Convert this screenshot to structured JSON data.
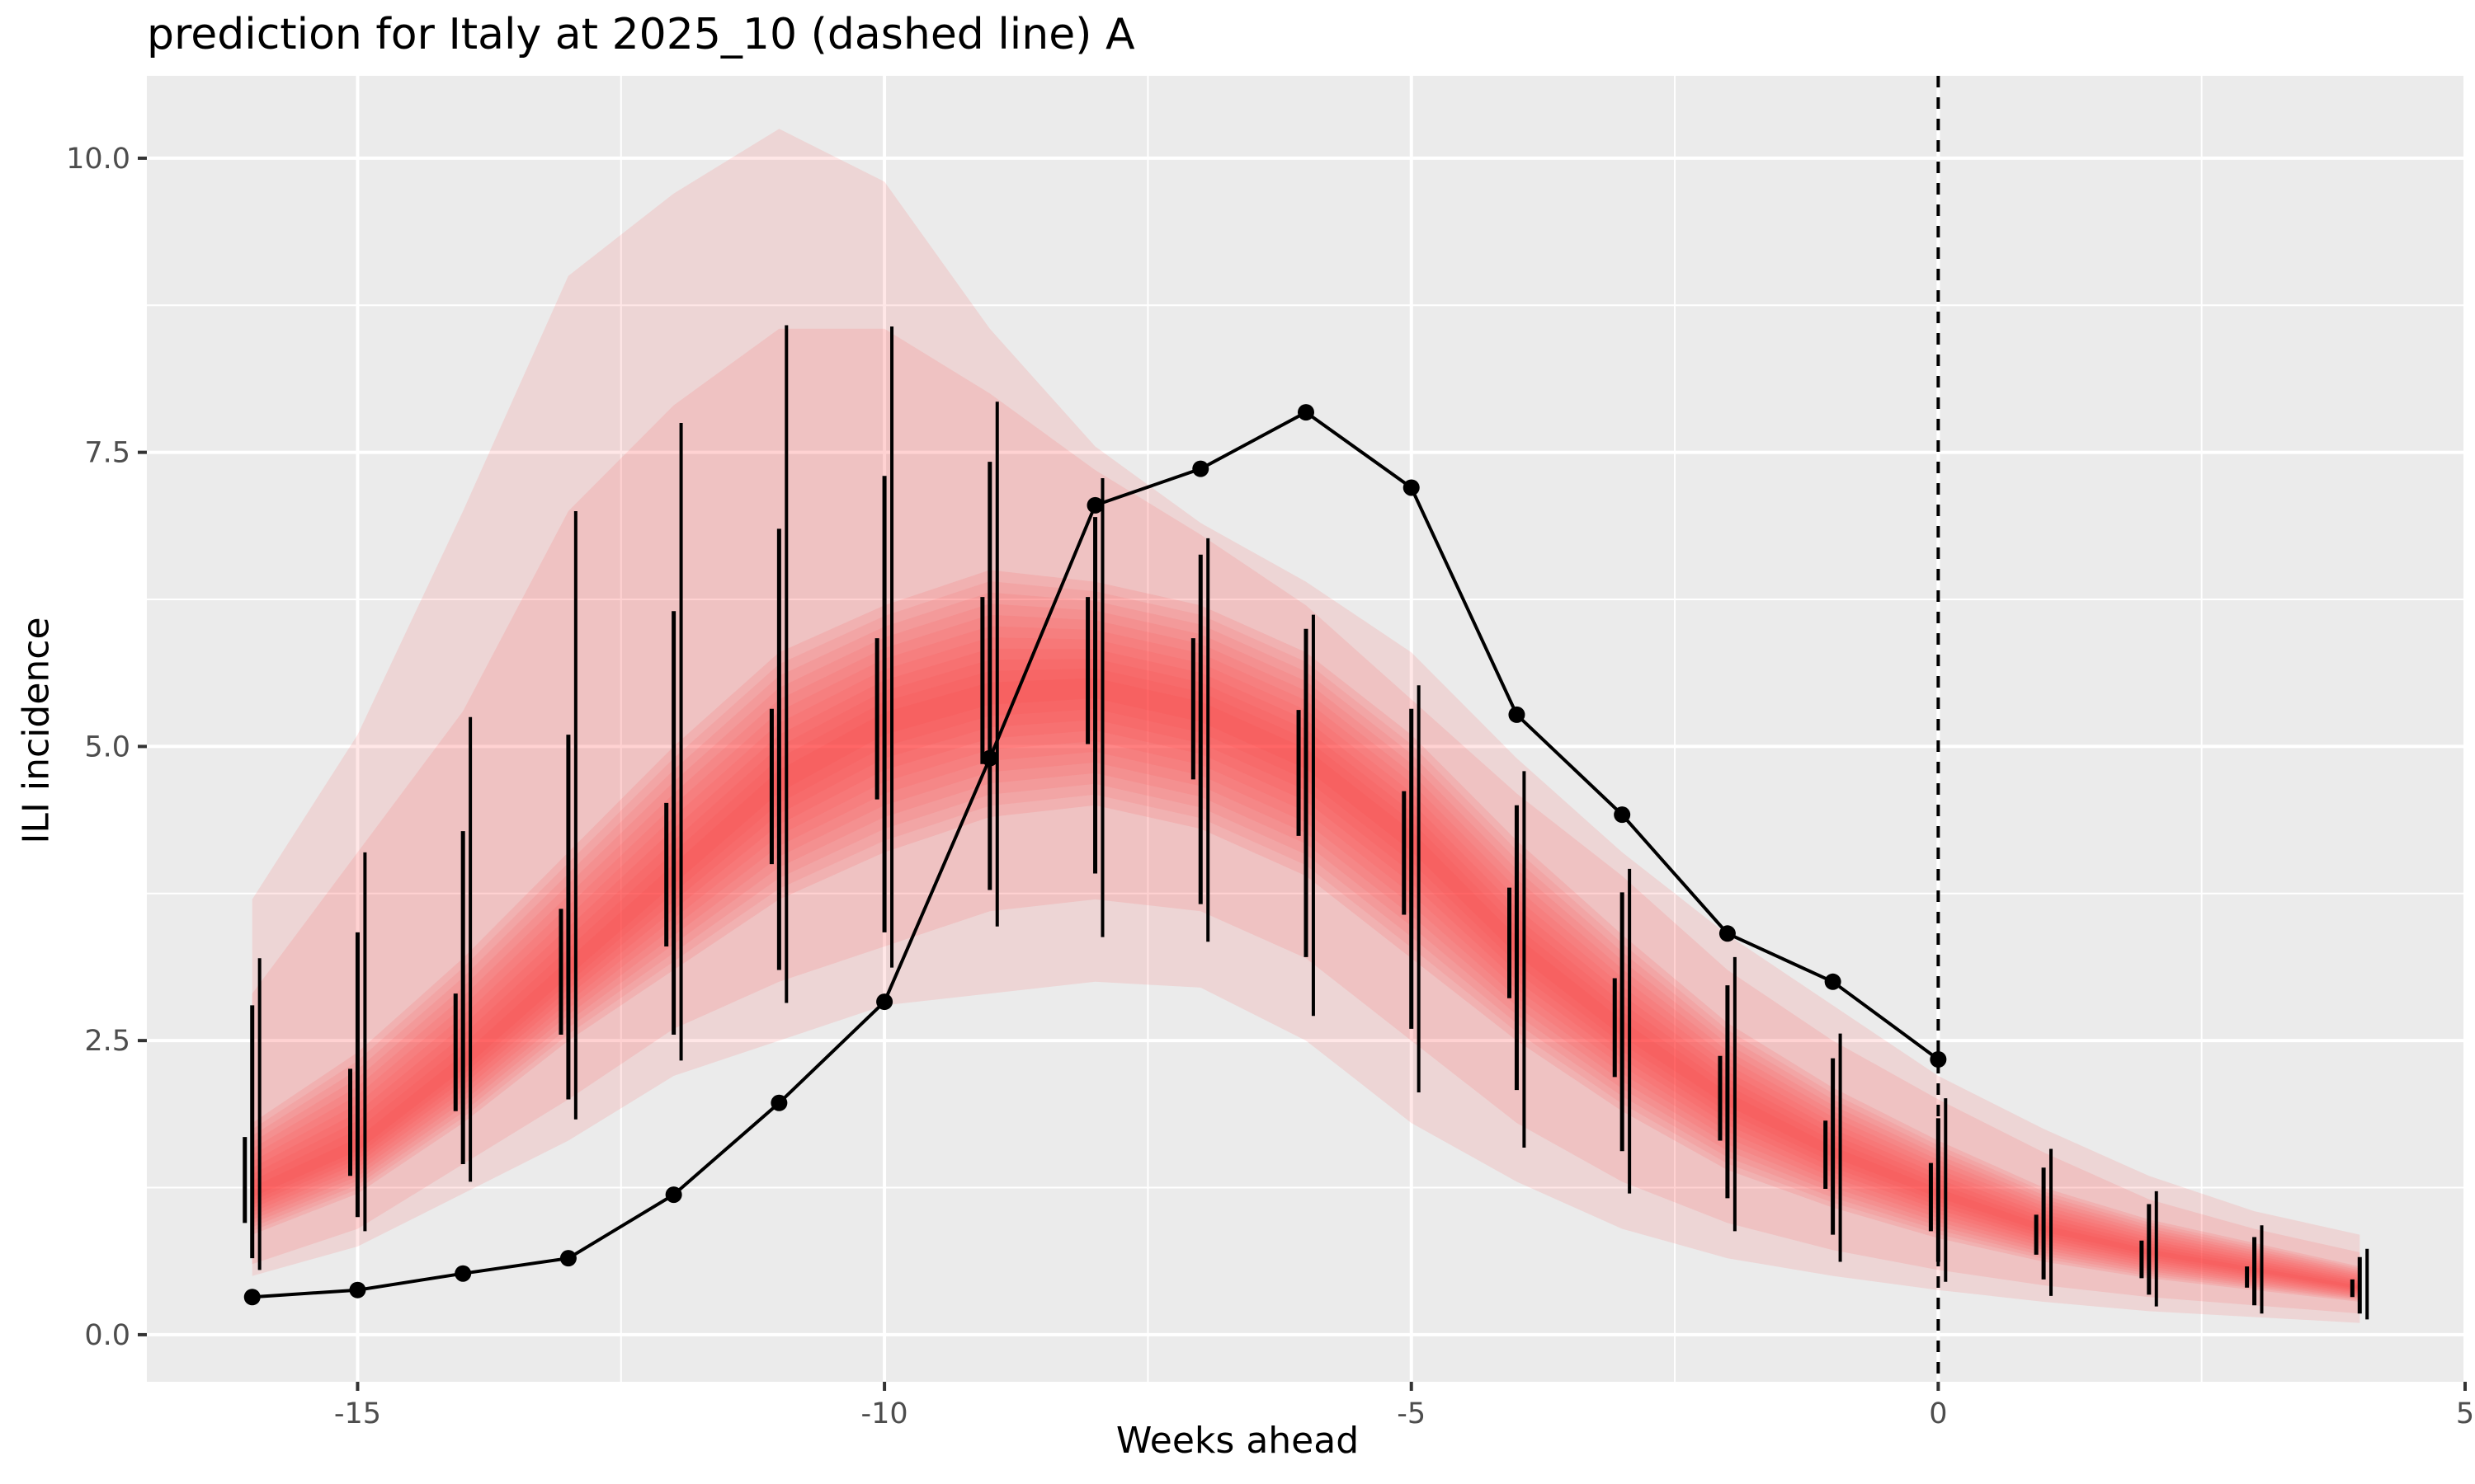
{
  "chart_data": {
    "type": "line",
    "title": "prediction for Italy at 2025_10 (dashed line) A",
    "xlabel": "Weeks ahead",
    "ylabel": "ILI incidence",
    "xlim": [
      -17,
      5
    ],
    "ylim": [
      -0.4,
      10.7
    ],
    "x_ticks": [
      -15,
      -10,
      -5,
      0,
      5
    ],
    "y_ticks": [
      0.0,
      2.5,
      5.0,
      7.5,
      10.0
    ],
    "x_tick_labels": [
      "-15",
      "-10",
      "-5",
      "0",
      "5"
    ],
    "y_tick_labels": [
      "0.0",
      "2.5",
      "5.0",
      "7.5",
      "10.0"
    ],
    "grid": true,
    "forecast_origin_x": 0,
    "observed": {
      "x": [
        -16,
        -15,
        -14,
        -13,
        -12,
        -11,
        -10,
        -9,
        -8,
        -7,
        -6,
        -5,
        -4,
        -3,
        -2,
        -1,
        0
      ],
      "y": [
        0.32,
        0.38,
        0.52,
        0.65,
        1.19,
        1.97,
        2.83,
        4.9,
        7.05,
        7.36,
        7.84,
        7.2,
        5.27,
        4.42,
        3.41,
        3.0,
        2.34
      ]
    },
    "forecast_ribbon": {
      "x": [
        -16,
        -15,
        -14,
        -13,
        -12,
        -11,
        -10,
        -9,
        -8,
        -7,
        -6,
        -5,
        -4,
        -3,
        -2,
        -1,
        0,
        1,
        2,
        3,
        4
      ],
      "median": [
        1.2,
        1.6,
        2.3,
        3.1,
        3.9,
        4.7,
        5.2,
        5.45,
        5.5,
        5.3,
        4.9,
        4.2,
        3.3,
        2.6,
        2.0,
        1.55,
        1.2,
        0.9,
        0.7,
        0.55,
        0.4
      ],
      "lower_95": [
        0.5,
        0.75,
        1.2,
        1.65,
        2.2,
        2.5,
        2.8,
        2.9,
        3.0,
        2.95,
        2.5,
        1.8,
        1.3,
        0.9,
        0.65,
        0.5,
        0.38,
        0.28,
        0.2,
        0.15,
        0.1
      ],
      "upper_95": [
        3.7,
        5.1,
        7.0,
        9.0,
        9.7,
        10.25,
        9.8,
        8.55,
        7.55,
        6.9,
        6.4,
        5.8,
        4.9,
        4.1,
        3.4,
        2.8,
        2.2,
        1.75,
        1.35,
        1.05,
        0.85
      ],
      "lower_80": [
        0.6,
        0.9,
        1.45,
        2.0,
        2.6,
        3.0,
        3.3,
        3.6,
        3.7,
        3.6,
        3.2,
        2.5,
        1.8,
        1.3,
        0.95,
        0.72,
        0.55,
        0.42,
        0.32,
        0.25,
        0.18
      ],
      "upper_80": [
        2.9,
        4.1,
        5.3,
        7.0,
        7.9,
        8.55,
        8.55,
        8.0,
        7.35,
        6.8,
        6.2,
        5.4,
        4.6,
        3.9,
        3.1,
        2.5,
        2.0,
        1.55,
        1.15,
        0.9,
        0.7
      ],
      "lower_50": [
        0.85,
        1.2,
        1.8,
        2.5,
        3.1,
        3.7,
        4.1,
        4.4,
        4.5,
        4.3,
        3.9,
        3.2,
        2.5,
        1.9,
        1.4,
        1.08,
        0.82,
        0.62,
        0.48,
        0.38,
        0.28
      ],
      "upper_50": [
        1.8,
        2.4,
        3.2,
        4.1,
        5.0,
        5.8,
        6.2,
        6.5,
        6.4,
        6.2,
        5.8,
        5.1,
        4.2,
        3.4,
        2.65,
        2.1,
        1.65,
        1.25,
        0.98,
        0.78,
        0.58
      ]
    },
    "interval_bars": [
      {
        "x": -16,
        "lo": [
          0.95,
          0.65,
          0.55
        ],
        "hi": [
          1.68,
          2.8,
          3.2
        ]
      },
      {
        "x": -15,
        "lo": [
          1.35,
          1.0,
          0.88
        ],
        "hi": [
          2.26,
          3.42,
          4.1
        ]
      },
      {
        "x": -14,
        "lo": [
          1.9,
          1.45,
          1.3
        ],
        "hi": [
          2.9,
          4.28,
          5.25
        ]
      },
      {
        "x": -13,
        "lo": [
          2.55,
          2.0,
          1.83
        ],
        "hi": [
          3.62,
          5.1,
          7.0
        ]
      },
      {
        "x": -12,
        "lo": [
          3.3,
          2.55,
          2.33
        ],
        "hi": [
          4.52,
          6.15,
          7.75
        ]
      },
      {
        "x": -11,
        "lo": [
          4.0,
          3.1,
          2.82
        ],
        "hi": [
          5.32,
          6.85,
          8.58
        ]
      },
      {
        "x": -10,
        "lo": [
          4.55,
          3.42,
          3.12
        ],
        "hi": [
          5.92,
          7.3,
          8.57
        ]
      },
      {
        "x": -9,
        "lo": [
          4.85,
          3.78,
          3.47
        ],
        "hi": [
          6.27,
          7.42,
          7.93
        ]
      },
      {
        "x": -8,
        "lo": [
          5.02,
          3.92,
          3.38
        ],
        "hi": [
          6.27,
          6.95,
          7.28
        ]
      },
      {
        "x": -7,
        "lo": [
          4.72,
          3.66,
          3.34
        ],
        "hi": [
          5.92,
          6.63,
          6.77
        ]
      },
      {
        "x": -6,
        "lo": [
          4.24,
          3.21,
          2.71
        ],
        "hi": [
          5.31,
          6.0,
          6.12
        ]
      },
      {
        "x": -5,
        "lo": [
          3.57,
          2.6,
          2.06
        ],
        "hi": [
          4.62,
          5.32,
          5.52
        ]
      },
      {
        "x": -4,
        "lo": [
          2.86,
          2.08,
          1.59
        ],
        "hi": [
          3.8,
          4.5,
          4.79
        ]
      },
      {
        "x": -3,
        "lo": [
          2.19,
          1.56,
          1.2
        ],
        "hi": [
          3.03,
          3.76,
          3.96
        ]
      },
      {
        "x": -2,
        "lo": [
          1.65,
          1.16,
          0.88
        ],
        "hi": [
          2.37,
          2.97,
          3.21
        ]
      },
      {
        "x": -1,
        "lo": [
          1.24,
          0.85,
          0.62
        ],
        "hi": [
          1.82,
          2.35,
          2.56
        ]
      },
      {
        "x": 0,
        "lo": [
          0.88,
          0.62,
          0.45
        ],
        "hi": [
          1.46,
          1.84,
          2.01
        ]
      },
      {
        "x": 1,
        "lo": [
          0.68,
          0.47,
          0.33
        ],
        "hi": [
          1.02,
          1.42,
          1.58
        ]
      },
      {
        "x": 2,
        "lo": [
          0.48,
          0.34,
          0.24
        ],
        "hi": [
          0.8,
          1.11,
          1.22
        ]
      },
      {
        "x": 3,
        "lo": [
          0.4,
          0.25,
          0.18
        ],
        "hi": [
          0.58,
          0.83,
          0.93
        ]
      },
      {
        "x": 4,
        "lo": [
          0.32,
          0.18,
          0.13
        ],
        "hi": [
          0.47,
          0.66,
          0.73
        ]
      }
    ],
    "colors": {
      "panel_background": "#ebebeb",
      "grid": "#ffffff",
      "ribbon": "#ff3b3b",
      "observed": "#000000",
      "text": "#4d4d4d"
    }
  }
}
